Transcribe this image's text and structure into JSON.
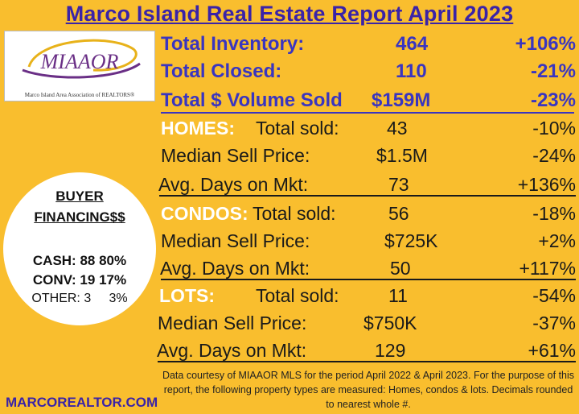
{
  "title": "Marco Island Real Estate Report April 2023",
  "logo": {
    "wordmark": "MIAAOR",
    "text": "Marco Island Area Association of REALTORS®"
  },
  "summary": [
    {
      "label": "Total Inventory:",
      "value": "464",
      "change": "+106%"
    },
    {
      "label": "Total Closed:",
      "value": "110",
      "change": "-21%"
    },
    {
      "label": "Total $ Volume Sold",
      "value": "$159M",
      "change": "-23%"
    }
  ],
  "homes": {
    "heading": "HOMES:",
    "total_sold_label": "Total sold:",
    "total_sold": "43",
    "total_sold_change": "-10%",
    "median_label": "Median Sell Price:",
    "median": "$1.5M",
    "median_change": "-24%",
    "dom_label": "Avg. Days on Mkt:",
    "dom": "73",
    "dom_change": "+136%"
  },
  "condos": {
    "heading": "CONDOS:",
    "total_sold_label": "Total sold:",
    "total_sold": "56",
    "total_sold_change": "-18%",
    "median_label": "Median Sell Price:",
    "median": "$725K",
    "median_change": "+2%",
    "dom_label": "Avg. Days on Mkt:",
    "dom": "50",
    "dom_change": "+117%"
  },
  "lots": {
    "heading": "LOTS:",
    "total_sold_label": "Total sold:",
    "total_sold": "11",
    "total_sold_change": "-54%",
    "median_label": "Median Sell Price:",
    "median": "$750K",
    "median_change": "-37%",
    "dom_label": "Avg. Days on Mkt:",
    "dom": "129",
    "dom_change": "+61%"
  },
  "financing": {
    "title_line1": "BUYER",
    "title_line2": "FINANCING$$",
    "cash": "CASH: 88   80%",
    "conv": "CONV: 19  17%",
    "other": "OTHER: 3     3%"
  },
  "website": "MARCOREALTOR.COM",
  "footnote": "Data courtesy of MIAAOR MLS for the period April 2022 &  April 2023. For the purpose of this report, the following property types are measured: Homes, condos  &  lots. Decimals rounded to nearest whole #.",
  "colors": {
    "background": "#f9be2e",
    "accent_blue": "#3a35c0",
    "title_blue": "#3a23a8",
    "label_white": "#ffffff"
  }
}
